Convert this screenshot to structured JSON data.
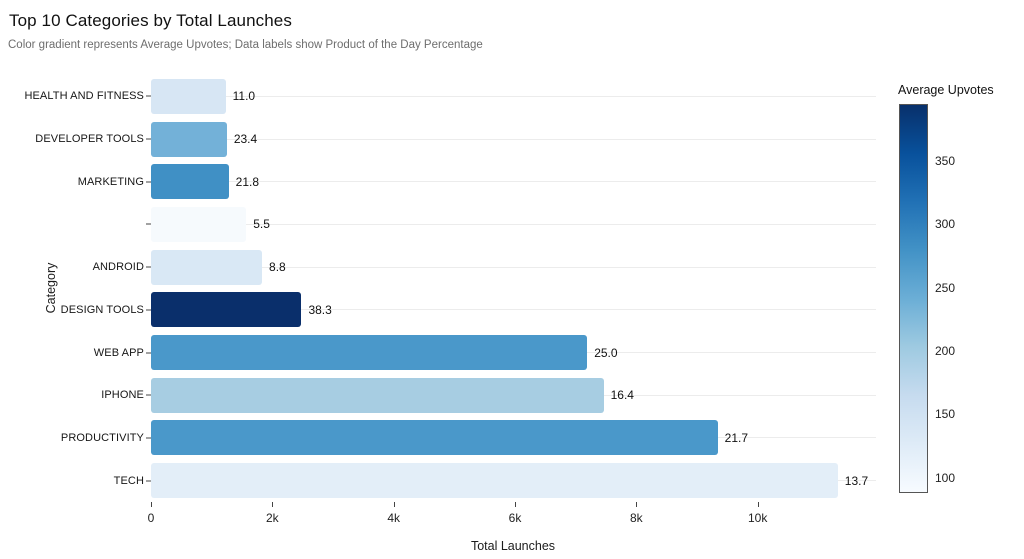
{
  "chart_data": {
    "type": "bar",
    "orientation": "horizontal",
    "title": "Top 10 Categories by Total Launches",
    "subtitle": "Color gradient represents Average Upvotes; Data labels show Product of the Day Percentage",
    "xlabel": "Total Launches",
    "ylabel": "Category",
    "xlim": [
      0,
      11950
    ],
    "grid": "horizontal-category-gridlines-only",
    "legend_position": "right-colorbar",
    "categories": [
      "HEALTH AND FITNESS",
      "DEVELOPER TOOLS",
      "MARKETING",
      "",
      "ANDROID",
      "DESIGN TOOLS",
      "WEB APP",
      "IPHONE",
      "PRODUCTIVITY",
      "TECH"
    ],
    "values": [
      1230,
      1250,
      1280,
      1570,
      1830,
      2480,
      7190,
      7460,
      9340,
      11320
    ],
    "data_labels": [
      "11.0",
      "23.4",
      "21.8",
      "5.5",
      "8.8",
      "38.3",
      "25.0",
      "16.4",
      "21.7",
      "13.7"
    ],
    "data_labels_meaning": "Product of the Day Percentage",
    "bar_colors": [
      "#d7e6f4",
      "#73b1d8",
      "#4090c5",
      "#f6fafd",
      "#d9e8f5",
      "#0a2f6b",
      "#4a98ca",
      "#a7cde2",
      "#4a98ca",
      "#e3eef8"
    ],
    "x_ticks": [
      {
        "label": "0",
        "value": 0
      },
      {
        "label": "2k",
        "value": 2000
      },
      {
        "label": "4k",
        "value": 4000
      },
      {
        "label": "6k",
        "value": 6000
      },
      {
        "label": "8k",
        "value": 8000
      },
      {
        "label": "10k",
        "value": 10000
      }
    ],
    "colorbar": {
      "title": "Average Upvotes",
      "ticks": [
        100,
        150,
        200,
        250,
        300,
        350
      ],
      "range": [
        88,
        395
      ],
      "gradient_bottom_to_top": [
        "#f7fbff",
        "#deebf7",
        "#c6dbef",
        "#9ecae1",
        "#6baed6",
        "#4292c6",
        "#2171b5",
        "#08519c",
        "#08306b"
      ]
    }
  }
}
